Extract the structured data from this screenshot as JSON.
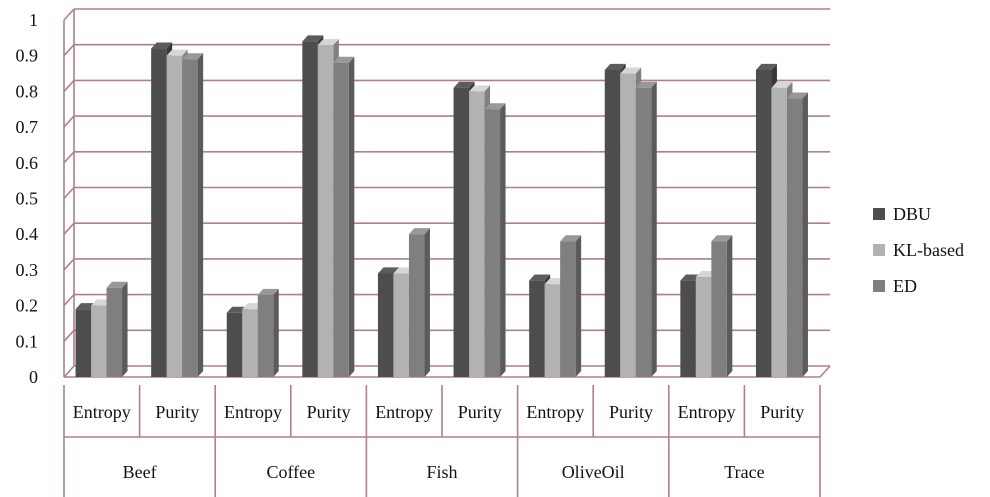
{
  "chart_data": {
    "type": "bar",
    "title": "",
    "xlabel": "",
    "ylabel": "",
    "ylim": [
      0,
      1
    ],
    "yticks": [
      "0",
      "0.1",
      "0.2",
      "0.3",
      "0.4",
      "0.5",
      "0.6",
      "0.7",
      "0.8",
      "0.9",
      "1"
    ],
    "groups": [
      "Beef",
      "Coffee",
      "Fish",
      "OliveOil",
      "Trace"
    ],
    "subcategories": [
      "Entropy",
      "Purity"
    ],
    "grid": true,
    "legend_position": "right",
    "series": [
      {
        "name": "DBU",
        "color": "#4d4d4d",
        "values": [
          0.19,
          0.92,
          0.18,
          0.94,
          0.29,
          0.81,
          0.27,
          0.86,
          0.27,
          0.86
        ]
      },
      {
        "name": "KL-based",
        "color": "#b2b2b2",
        "values": [
          0.2,
          0.9,
          0.19,
          0.93,
          0.29,
          0.8,
          0.26,
          0.85,
          0.28,
          0.81
        ]
      },
      {
        "name": "ED",
        "color": "#7f7f7f",
        "values": [
          0.25,
          0.89,
          0.23,
          0.88,
          0.4,
          0.75,
          0.38,
          0.81,
          0.38,
          0.78
        ]
      }
    ]
  },
  "colors": {
    "grid": "#b07f8a",
    "axis": "#b07f8a"
  }
}
